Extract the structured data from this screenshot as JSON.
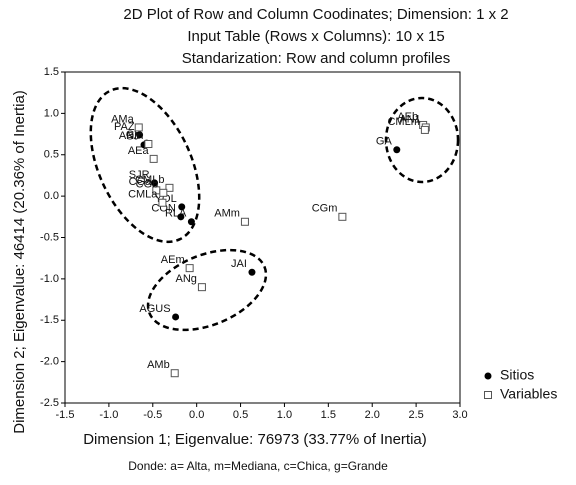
{
  "chart_data": {
    "type": "scatter",
    "title_lines": [
      "2D Plot of Row and Column Coodinates; Dimension: 1 x 2",
      "Input Table (Rows x Columns): 10 x 15",
      "Standarization: Row and column profiles"
    ],
    "x_label": "Dimension 1; Eigenvalue: 76973 (33.77% of Inertia)",
    "y_label": "Dimension 2; Eigenvalue: 46414 (20.36% of Inertia)",
    "note": "Donde: a= Alta, m=Mediana, c=Chica, g=Grande",
    "xlim": [
      -1.5,
      3.0
    ],
    "ylim": [
      -2.5,
      1.5
    ],
    "xticks": [
      -1.5,
      {
        "value": -1,
        "label": "-1.0"
      },
      -0.5,
      {
        "value": 0,
        "label": "0.0"
      },
      0.5,
      {
        "value": 1,
        "label": "1.0"
      },
      1.5,
      {
        "value": 2,
        "label": "2.0"
      },
      2.5,
      {
        "value": 3,
        "label": "3.0"
      }
    ],
    "yticks": [
      1.5,
      {
        "value": 1,
        "label": "1.0"
      },
      0.5,
      {
        "value": 0,
        "label": "0.0"
      },
      -0.5,
      {
        "value": -1,
        "label": "-1.0"
      },
      -1.5,
      {
        "value": -2,
        "label": "-2.0"
      },
      -2.5
    ],
    "legend": "bottom-right",
    "series": [
      {
        "name": "Sitios",
        "marker": "circle",
        "color": "#000000",
        "labels": [
          "PAZ",
          "SJ",
          "GV",
          "SJR",
          "RLA",
          "YOL",
          "CON",
          "JAI",
          "AGUS",
          "GA"
        ],
        "x": [
          -0.65,
          -0.6,
          -0.57,
          -0.48,
          -0.06,
          -0.17,
          -0.18,
          0.63,
          -0.24,
          2.28
        ],
        "y": [
          0.74,
          0.62,
          0.64,
          0.16,
          -0.31,
          -0.13,
          -0.25,
          -0.92,
          -1.46,
          0.56
        ]
      },
      {
        "name": "Variables",
        "marker": "square",
        "color": "#555555",
        "labels": [
          "AMa",
          "ANm",
          "AEa",
          "CGa",
          "CMLb",
          "CGb",
          "CMLa",
          "AMm",
          "CGm",
          "AEm",
          "ANg",
          "AMb",
          "AEb",
          "AN1",
          "CMLm"
        ],
        "x": [
          -0.66,
          -0.55,
          -0.49,
          -0.46,
          -0.31,
          -0.38,
          -0.39,
          0.55,
          1.66,
          -0.08,
          0.06,
          -0.25,
          2.58,
          2.61,
          2.6
        ],
        "y": [
          0.83,
          0.63,
          0.45,
          0.07,
          0.1,
          0.04,
          -0.08,
          -0.31,
          -0.25,
          -0.87,
          -1.1,
          -2.14,
          0.86,
          0.83,
          0.8
        ]
      }
    ]
  }
}
